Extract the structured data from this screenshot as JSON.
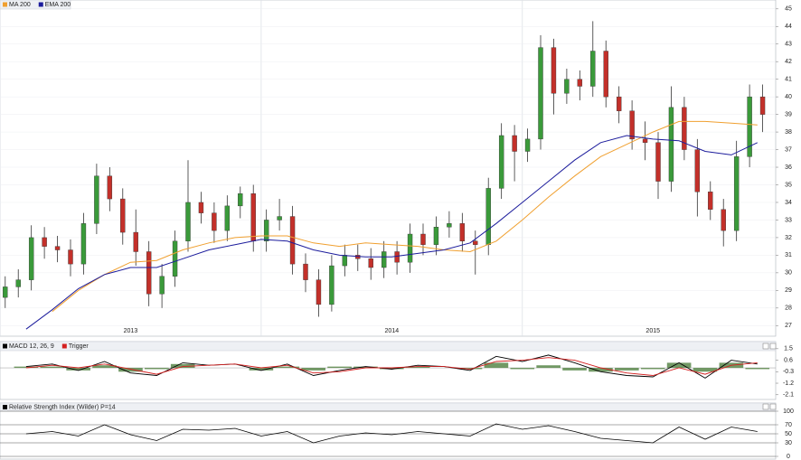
{
  "chart_data": [
    {
      "type": "candlestick",
      "x": [
        2013.02,
        2013.07,
        2013.12,
        2013.17,
        2013.22,
        2013.27,
        2013.32,
        2013.37,
        2013.42,
        2013.47,
        2013.52,
        2013.57,
        2013.62,
        2013.67,
        2013.72,
        2013.77,
        2013.82,
        2013.87,
        2013.92,
        2013.97,
        2014.02,
        2014.07,
        2014.12,
        2014.17,
        2014.22,
        2014.27,
        2014.32,
        2014.37,
        2014.42,
        2014.47,
        2014.52,
        2014.57,
        2014.62,
        2014.67,
        2014.72,
        2014.77,
        2014.82,
        2014.87,
        2014.92,
        2014.97,
        2015.02,
        2015.07,
        2015.12,
        2015.17,
        2015.22,
        2015.27,
        2015.32,
        2015.37,
        2015.42,
        2015.47,
        2015.52,
        2015.57,
        2015.62,
        2015.67,
        2015.72,
        2015.77,
        2015.82,
        2015.87,
        2015.92
      ],
      "open": [
        28.6,
        29.2,
        29.6,
        32.0,
        31.5,
        31.3,
        30.5,
        32.8,
        35.5,
        34.2,
        32.3,
        31.2,
        28.8,
        29.8,
        31.8,
        34.0,
        33.4,
        32.4,
        33.8,
        34.5,
        31.8,
        33.0,
        33.2,
        30.5,
        29.6,
        28.2,
        30.4,
        31.0,
        30.8,
        30.3,
        31.2,
        30.6,
        32.2,
        31.6,
        32.6,
        32.8,
        31.8,
        31.6,
        34.8,
        37.8,
        36.9,
        37.6,
        42.8,
        40.2,
        41.0,
        40.6,
        42.6,
        40.0,
        39.2,
        37.6,
        37.4,
        35.2,
        39.4,
        37.0,
        34.6,
        33.6,
        32.4,
        36.6,
        40.0
      ],
      "high": [
        29.8,
        30.2,
        32.7,
        32.6,
        32.1,
        31.9,
        33.4,
        36.2,
        36.0,
        34.8,
        33.6,
        31.8,
        30.5,
        32.4,
        36.4,
        34.6,
        34.0,
        34.4,
        34.9,
        35.0,
        33.6,
        34.2,
        33.8,
        31.1,
        30.2,
        31.0,
        31.6,
        31.6,
        31.4,
        31.8,
        31.8,
        32.8,
        32.8,
        33.2,
        33.5,
        33.4,
        32.4,
        35.4,
        38.5,
        38.4,
        38.2,
        43.5,
        43.3,
        41.6,
        41.5,
        44.3,
        43.2,
        40.6,
        39.8,
        38.6,
        38.0,
        40.6,
        40.0,
        37.6,
        35.2,
        34.2,
        37.5,
        40.7,
        40.7
      ],
      "low": [
        28.0,
        28.6,
        29.0,
        30.8,
        30.6,
        29.8,
        29.9,
        32.2,
        33.5,
        31.6,
        30.4,
        28.1,
        28.0,
        29.2,
        31.2,
        32.8,
        31.7,
        31.8,
        33.1,
        31.2,
        31.2,
        32.4,
        29.9,
        28.9,
        27.5,
        27.8,
        29.8,
        30.1,
        29.6,
        29.7,
        29.9,
        30.0,
        31.0,
        31.0,
        32.0,
        31.2,
        29.9,
        31.0,
        34.2,
        35.2,
        36.3,
        37.0,
        39.0,
        39.6,
        39.8,
        40.0,
        39.4,
        38.5,
        37.0,
        36.4,
        34.2,
        34.6,
        36.4,
        33.2,
        33.0,
        31.5,
        31.8,
        36.0,
        38.0
      ],
      "close": [
        29.2,
        29.6,
        32.0,
        31.5,
        31.3,
        30.5,
        32.8,
        35.5,
        34.2,
        32.3,
        31.2,
        28.8,
        29.8,
        31.8,
        34.0,
        33.4,
        32.4,
        33.8,
        34.5,
        31.8,
        33.0,
        33.2,
        30.5,
        29.6,
        28.2,
        30.4,
        31.0,
        30.8,
        30.3,
        31.2,
        30.6,
        32.2,
        31.6,
        32.6,
        32.8,
        31.8,
        31.6,
        34.8,
        37.8,
        36.9,
        37.6,
        42.8,
        40.2,
        41.0,
        40.6,
        42.6,
        40.0,
        39.2,
        37.6,
        37.4,
        35.2,
        39.4,
        37.0,
        34.6,
        33.6,
        32.4,
        36.6,
        40.0,
        39.0
      ],
      "up_color": "#3a9a3a",
      "down_color": "#c3302a",
      "xlim": [
        2013,
        2015.97
      ],
      "xticks": [
        2013,
        2014,
        2015
      ],
      "ylim": [
        26.5,
        45.4
      ],
      "yticks": [
        27,
        28,
        29,
        30,
        31,
        32,
        33,
        34,
        35,
        36,
        37,
        38,
        39,
        40,
        41,
        42,
        43,
        44,
        45
      ],
      "grid": true,
      "overlays": {
        "x": [
          2013.1,
          2013.2,
          2013.3,
          2013.4,
          2013.5,
          2013.6,
          2013.7,
          2013.8,
          2013.9,
          2014.0,
          2014.1,
          2014.2,
          2014.3,
          2014.4,
          2014.5,
          2014.6,
          2014.7,
          2014.8,
          2014.9,
          2015.0,
          2015.1,
          2015.2,
          2015.3,
          2015.4,
          2015.5,
          2015.6,
          2015.7,
          2015.8,
          2015.9
        ],
        "series": [
          {
            "name": "MA 200",
            "color": "#f0a030",
            "values": [
              null,
              27.8,
              29.0,
              29.9,
              30.6,
              30.7,
              31.3,
              31.7,
              32.0,
              32.1,
              32.1,
              31.7,
              31.5,
              31.7,
              31.6,
              31.5,
              31.3,
              31.2,
              31.8,
              33.0,
              34.3,
              35.5,
              36.6,
              37.3,
              38.0,
              38.6,
              38.6,
              38.5,
              38.4
            ]
          },
          {
            "name": "EMA 200",
            "color": "#1c1c9c",
            "values": [
              26.8,
              27.9,
              29.1,
              29.9,
              30.3,
              30.3,
              30.8,
              31.3,
              31.6,
              31.9,
              31.8,
              31.3,
              31.0,
              30.9,
              30.9,
              31.1,
              31.3,
              31.7,
              32.8,
              34.0,
              35.2,
              36.4,
              37.4,
              37.8,
              37.6,
              37.5,
              36.9,
              36.7,
              37.4
            ]
          }
        ]
      }
    },
    {
      "type": "macd",
      "x": [
        2013.1,
        2013.2,
        2013.3,
        2013.4,
        2013.5,
        2013.6,
        2013.7,
        2013.8,
        2013.9,
        2014.0,
        2014.1,
        2014.2,
        2014.3,
        2014.4,
        2014.5,
        2014.6,
        2014.7,
        2014.8,
        2014.9,
        2015.0,
        2015.1,
        2015.2,
        2015.3,
        2015.4,
        2015.5,
        2015.6,
        2015.7,
        2015.8,
        2015.9
      ],
      "xlim": [
        2013,
        2015.97
      ],
      "ylim": [
        -2.4,
        1.7
      ],
      "yticks": [
        1.5,
        0.6,
        -0.3,
        -1.2,
        -2.1
      ],
      "series": [
        {
          "name": "MACD 12, 26, 9",
          "color": "#000000",
          "values": [
            0.1,
            0.3,
            -0.2,
            0.5,
            -0.4,
            -0.6,
            0.4,
            0.2,
            0.3,
            -0.2,
            0.3,
            -0.6,
            -0.2,
            0.1,
            -0.1,
            0.2,
            0.1,
            -0.2,
            0.9,
            0.5,
            1.0,
            0.4,
            -0.3,
            -0.6,
            -0.7,
            0.4,
            -0.8,
            0.6,
            0.3
          ]
        },
        {
          "name": "Trigger",
          "color": "#d42020",
          "values": [
            0.0,
            0.2,
            0.0,
            0.3,
            -0.1,
            -0.5,
            0.1,
            0.2,
            0.3,
            0.0,
            0.2,
            -0.4,
            -0.3,
            0.0,
            0.0,
            0.1,
            0.1,
            -0.1,
            0.5,
            0.6,
            0.8,
            0.6,
            0.0,
            -0.4,
            -0.6,
            0.0,
            -0.5,
            0.2,
            0.4
          ]
        },
        {
          "type": "bar",
          "color": "#4f7f3f",
          "values": [
            0.1,
            0.1,
            -0.2,
            0.2,
            -0.3,
            -0.1,
            0.3,
            0.0,
            0.0,
            -0.2,
            0.1,
            -0.2,
            0.1,
            0.1,
            -0.1,
            0.1,
            0.0,
            -0.1,
            0.4,
            -0.1,
            0.2,
            -0.2,
            -0.3,
            -0.2,
            -0.1,
            0.4,
            -0.3,
            0.4,
            -0.1
          ]
        }
      ]
    },
    {
      "type": "rsi",
      "x": [
        2013.1,
        2013.2,
        2013.3,
        2013.4,
        2013.5,
        2013.6,
        2013.7,
        2013.8,
        2013.9,
        2014.0,
        2014.1,
        2014.2,
        2014.3,
        2014.4,
        2014.5,
        2014.6,
        2014.7,
        2014.8,
        2014.9,
        2015.0,
        2015.1,
        2015.2,
        2015.3,
        2015.4,
        2015.5,
        2015.6,
        2015.7,
        2015.8,
        2015.9
      ],
      "xlim": [
        2013,
        2015.97
      ],
      "ylim": [
        0,
        100
      ],
      "yticks": [
        100,
        70,
        50,
        30,
        0
      ],
      "series": [
        {
          "name": "Relative Strength Index (Wilder) P=14",
          "color": "#000000",
          "values": [
            50,
            55,
            45,
            70,
            48,
            35,
            60,
            58,
            62,
            45,
            55,
            30,
            45,
            52,
            48,
            55,
            50,
            45,
            72,
            60,
            68,
            55,
            40,
            35,
            30,
            65,
            38,
            65,
            55
          ]
        }
      ]
    }
  ]
}
